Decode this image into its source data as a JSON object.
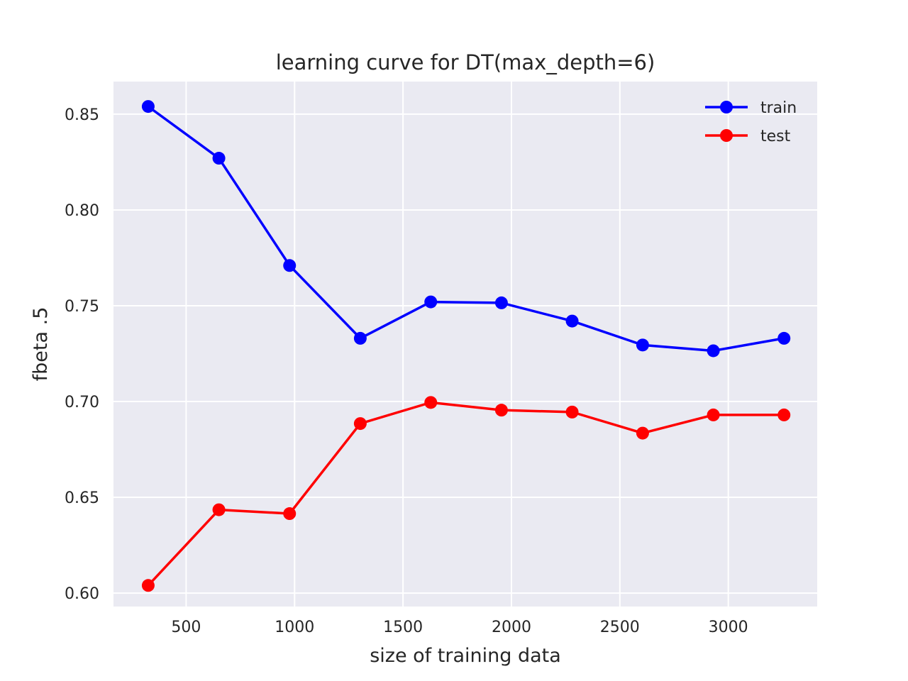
{
  "chart_data": {
    "type": "line",
    "title": "learning curve for DT(max_depth=6)",
    "xlabel": "size of training data",
    "ylabel": "fbeta .5",
    "xlim": [
      165,
      3410
    ],
    "ylim": [
      0.593,
      0.867
    ],
    "xticks": [
      500,
      1000,
      1500,
      2000,
      2500,
      3000
    ],
    "yticks": [
      0.6,
      0.65,
      0.7,
      0.75,
      0.8,
      0.85
    ],
    "xtick_labels": [
      "500",
      "1000",
      "1500",
      "2000",
      "2500",
      "3000"
    ],
    "ytick_labels": [
      "0.60",
      "0.65",
      "0.70",
      "0.75",
      "0.80",
      "0.85"
    ],
    "grid": true,
    "legend_position": "top-right",
    "x": [
      325,
      651,
      977,
      1303,
      1628,
      1954,
      2280,
      2605,
      2931,
      3257
    ],
    "series": [
      {
        "name": "train",
        "color": "#0000ff",
        "marker": "circle",
        "values": [
          0.854,
          0.827,
          0.771,
          0.733,
          0.752,
          0.7515,
          0.742,
          0.7295,
          0.7265,
          0.733
        ]
      },
      {
        "name": "test",
        "color": "#ff0000",
        "marker": "circle",
        "values": [
          0.604,
          0.6435,
          0.6415,
          0.6885,
          0.6995,
          0.6955,
          0.6945,
          0.6835,
          0.693,
          0.693
        ]
      }
    ],
    "plot_background": "#eaeaf2"
  }
}
